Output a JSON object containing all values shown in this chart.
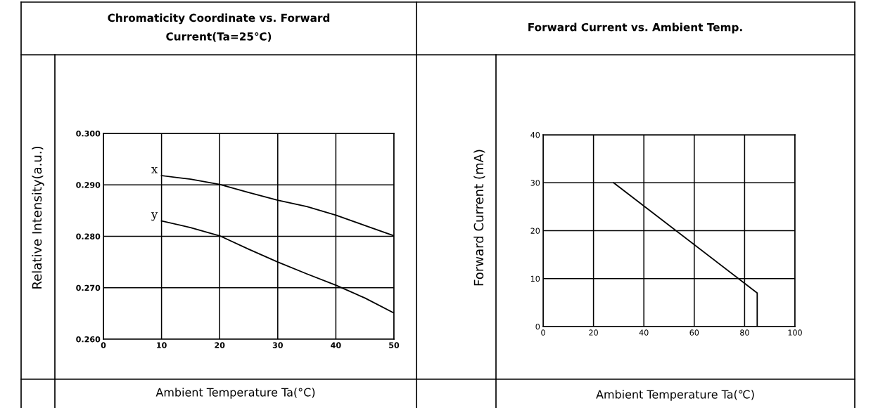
{
  "chart_data": [
    {
      "type": "line",
      "title": "Chromaticity Coordinate vs. Forward\nCurrent(Ta=25℃)",
      "xlabel": "Ambient Temperature Ta(°C)",
      "ylabel": "Relative Intensity(a.u.)",
      "x": [
        10,
        15,
        20,
        25,
        30,
        35,
        40,
        45,
        50
      ],
      "series": [
        {
          "name": "x",
          "color": "#000000",
          "values": [
            0.2918,
            0.2911,
            0.2901,
            0.2885,
            0.287,
            0.2858,
            0.2841,
            0.2821,
            0.2801
          ]
        },
        {
          "name": "y",
          "color": "#000000",
          "values": [
            0.283,
            0.2817,
            0.2801,
            0.2775,
            0.275,
            0.2727,
            0.2705,
            0.268,
            0.2651
          ]
        }
      ],
      "xlim": [
        0,
        50
      ],
      "xticks": [
        0,
        10,
        20,
        30,
        40,
        50
      ],
      "ylim": [
        0.26,
        0.3
      ],
      "yticks": [
        {
          "value": 0.26,
          "label": "0.260"
        },
        {
          "value": 0.27,
          "label": "0.270"
        },
        {
          "value": 0.28,
          "label": "0.280"
        },
        {
          "value": 0.29,
          "label": "0.290"
        },
        {
          "value": 0.3,
          "label": "0.300"
        }
      ],
      "grid": true
    },
    {
      "type": "line",
      "title": "Forward Current vs. Ambient Temp.",
      "xlabel": "Ambient Temperature Ta(℃)",
      "ylabel": "Forward Current (mA)",
      "x": [
        28,
        85,
        85
      ],
      "series": [
        {
          "color": "#000000",
          "values": [
            30,
            7,
            0
          ]
        }
      ],
      "xlim": [
        0,
        100
      ],
      "xticks": [
        0,
        20,
        40,
        60,
        80,
        100
      ],
      "ylim": [
        0,
        40
      ],
      "yticks": [
        0,
        10,
        20,
        30,
        40
      ],
      "grid": true
    }
  ]
}
